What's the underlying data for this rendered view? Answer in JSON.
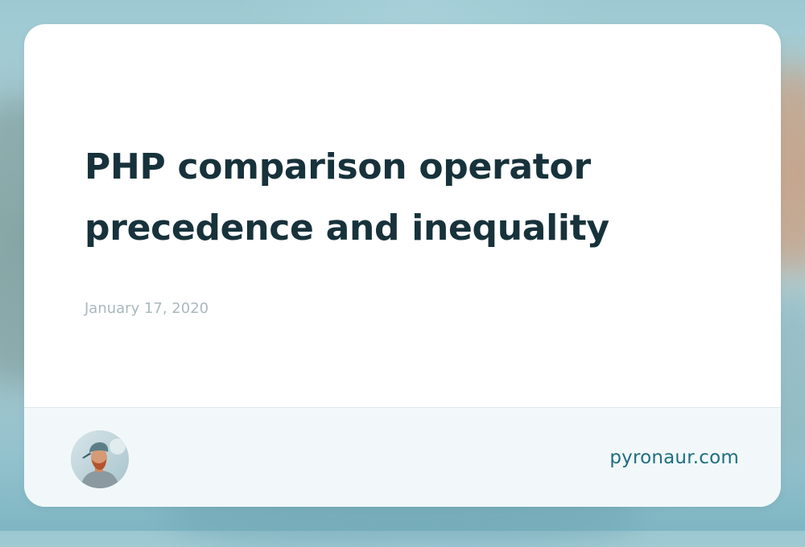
{
  "post": {
    "title": "PHP comparison operator precedence and inequality",
    "date": "January 17, 2020"
  },
  "footer": {
    "site": "pyronaur.com",
    "avatar_icon": "author-avatar-icon"
  },
  "colors": {
    "title": "#17323b",
    "date": "#a9b8bc",
    "link": "#1e6e80",
    "footer_bg": "#f2f8f9"
  }
}
